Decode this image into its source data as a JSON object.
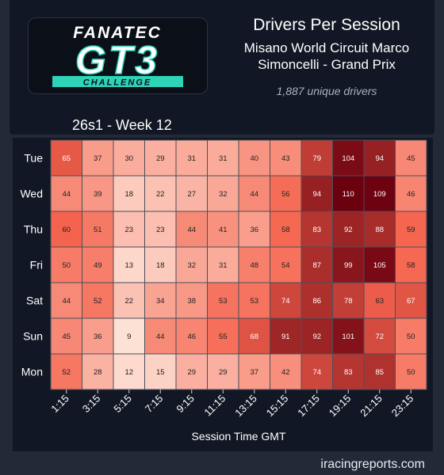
{
  "header": {
    "title": "Drivers Per Session",
    "track": "Misano World Circuit Marco Simoncelli - Grand Prix",
    "unique_drivers": "1,887 unique drivers",
    "season_week": "26s1 - Week 12"
  },
  "logo": {
    "brand": "FANATEC",
    "series": "GT3",
    "subtitle": "CHALLENGE"
  },
  "footer": {
    "site": "iracingreports.com"
  },
  "colors": {
    "background": "#232a37",
    "card": "#111724",
    "heat_low": "#fde1d5",
    "heat_mid": "#f5644e",
    "heat_high": "#6b000f",
    "logo_accent": "#2fd3b8"
  },
  "chart_data": {
    "type": "heatmap",
    "xlabel": "Session Time GMT",
    "x": [
      "1:15",
      "3:15",
      "5:15",
      "7:15",
      "9:15",
      "11:15",
      "13:15",
      "15:15",
      "17:15",
      "19:15",
      "21:15",
      "23:15"
    ],
    "y": [
      "Tue",
      "Wed",
      "Thu",
      "Fri",
      "Sat",
      "Sun",
      "Mon"
    ],
    "values": [
      [
        65,
        37,
        30,
        29,
        31,
        31,
        40,
        43,
        79,
        104,
        94,
        45
      ],
      [
        44,
        39,
        18,
        22,
        27,
        32,
        44,
        56,
        94,
        110,
        109,
        46
      ],
      [
        60,
        51,
        23,
        23,
        44,
        41,
        36,
        58,
        83,
        92,
        88,
        59
      ],
      [
        50,
        49,
        13,
        18,
        32,
        31,
        48,
        54,
        87,
        99,
        105,
        58
      ],
      [
        44,
        52,
        22,
        34,
        38,
        53,
        53,
        74,
        86,
        78,
        63,
        67
      ],
      [
        45,
        36,
        9,
        44,
        46,
        55,
        68,
        91,
        92,
        101,
        72,
        50
      ],
      [
        52,
        28,
        12,
        15,
        29,
        29,
        37,
        42,
        74,
        83,
        85,
        50
      ]
    ],
    "color_range": [
      9,
      110
    ]
  }
}
